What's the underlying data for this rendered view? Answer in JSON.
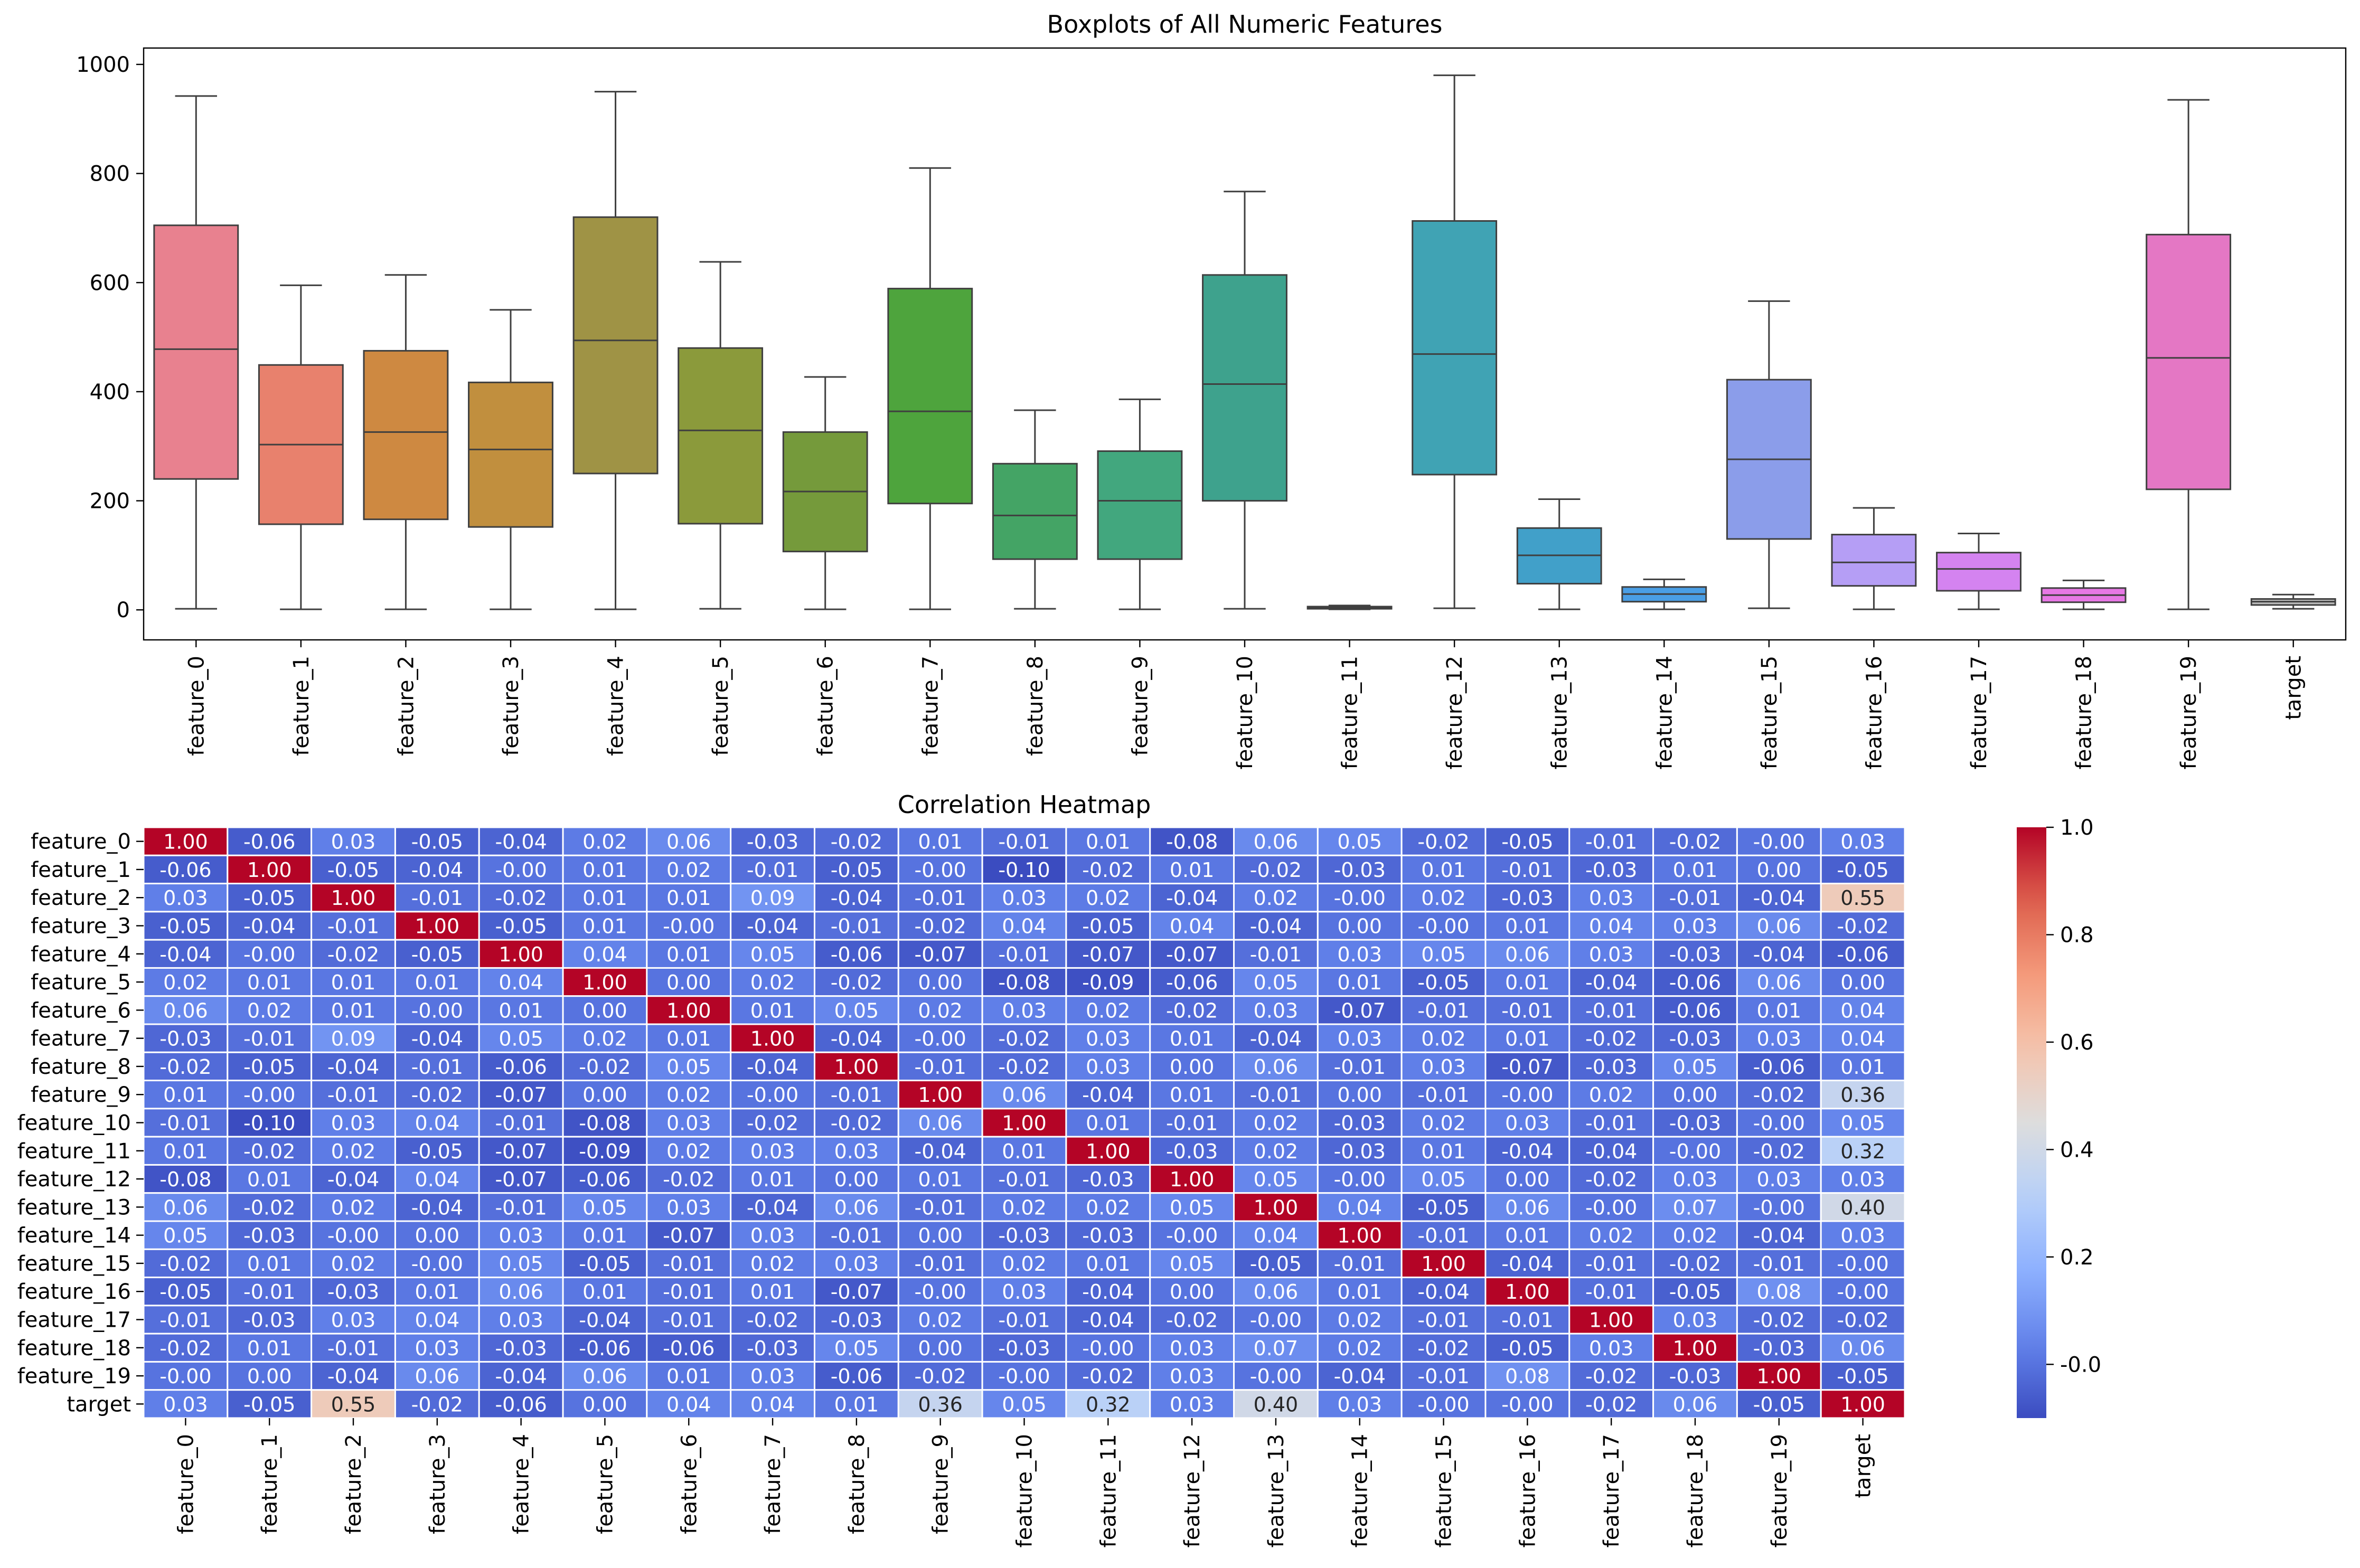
{
  "chart_data": [
    {
      "type": "box",
      "title": "Boxplots of All Numeric Features",
      "xlabel": "",
      "ylabel": "",
      "ylim": [
        -55,
        1030
      ],
      "yticks": [
        0,
        200,
        400,
        600,
        800,
        1000
      ],
      "grid": false,
      "categories": [
        "feature_0",
        "feature_1",
        "feature_2",
        "feature_3",
        "feature_4",
        "feature_5",
        "feature_6",
        "feature_7",
        "feature_8",
        "feature_9",
        "feature_10",
        "feature_11",
        "feature_12",
        "feature_13",
        "feature_14",
        "feature_15",
        "feature_16",
        "feature_17",
        "feature_18",
        "feature_19",
        "target"
      ],
      "boxes": [
        {
          "whislo": 2,
          "q1": 240,
          "med": 478,
          "q3": 705,
          "whishi": 942
        },
        {
          "whislo": 1,
          "q1": 157,
          "med": 303,
          "q3": 449,
          "whishi": 595
        },
        {
          "whislo": 1,
          "q1": 166,
          "med": 326,
          "q3": 475,
          "whishi": 614
        },
        {
          "whislo": 1,
          "q1": 152,
          "med": 294,
          "q3": 417,
          "whishi": 550
        },
        {
          "whislo": 1,
          "q1": 250,
          "med": 494,
          "q3": 720,
          "whishi": 950
        },
        {
          "whislo": 2,
          "q1": 158,
          "med": 329,
          "q3": 480,
          "whishi": 638
        },
        {
          "whislo": 1,
          "q1": 107,
          "med": 217,
          "q3": 326,
          "whishi": 427
        },
        {
          "whislo": 1,
          "q1": 195,
          "med": 364,
          "q3": 589,
          "whishi": 810
        },
        {
          "whislo": 2,
          "q1": 93,
          "med": 173,
          "q3": 268,
          "whishi": 366
        },
        {
          "whislo": 1,
          "q1": 93,
          "med": 200,
          "q3": 291,
          "whishi": 386
        },
        {
          "whislo": 2,
          "q1": 200,
          "med": 414,
          "q3": 614,
          "whishi": 767
        },
        {
          "whislo": 1,
          "q1": 2,
          "med": 4,
          "q3": 6,
          "whishi": 8
        },
        {
          "whislo": 3,
          "q1": 248,
          "med": 469,
          "q3": 713,
          "whishi": 980
        },
        {
          "whislo": 1,
          "q1": 48,
          "med": 100,
          "q3": 150,
          "whishi": 203
        },
        {
          "whislo": 1,
          "q1": 15,
          "med": 29,
          "q3": 42,
          "whishi": 56
        },
        {
          "whislo": 3,
          "q1": 130,
          "med": 276,
          "q3": 422,
          "whishi": 566
        },
        {
          "whislo": 1,
          "q1": 44,
          "med": 87,
          "q3": 138,
          "whishi": 187
        },
        {
          "whislo": 1,
          "q1": 35,
          "med": 75,
          "q3": 105,
          "whishi": 140
        },
        {
          "whislo": 1,
          "q1": 14,
          "med": 27,
          "q3": 40,
          "whishi": 54
        },
        {
          "whislo": 1,
          "q1": 221,
          "med": 462,
          "q3": 688,
          "whishi": 935
        },
        {
          "whislo": 2,
          "q1": 9,
          "med": 15,
          "q3": 20,
          "whishi": 28
        }
      ],
      "colors": [
        "#e8818f",
        "#e8816d",
        "#ce8941",
        "#c18f3e",
        "#9f9345",
        "#8b9a3b",
        "#759a3b",
        "#4ea43d",
        "#44a465",
        "#42a77e",
        "#3ea28d",
        "#3ea59a",
        "#40a3b4",
        "#41a0c9",
        "#4a9ee5",
        "#8b9dea",
        "#b59ef5",
        "#d483f0",
        "#e778e5",
        "#e477c4",
        "#bcbcbc"
      ]
    },
    {
      "type": "heatmap",
      "title": "Correlation Heatmap",
      "rows": [
        "feature_0",
        "feature_1",
        "feature_2",
        "feature_3",
        "feature_4",
        "feature_5",
        "feature_6",
        "feature_7",
        "feature_8",
        "feature_9",
        "feature_10",
        "feature_11",
        "feature_12",
        "feature_13",
        "feature_14",
        "feature_15",
        "feature_16",
        "feature_17",
        "feature_18",
        "feature_19",
        "target"
      ],
      "cols": [
        "feature_0",
        "feature_1",
        "feature_2",
        "feature_3",
        "feature_4",
        "feature_5",
        "feature_6",
        "feature_7",
        "feature_8",
        "feature_9",
        "feature_10",
        "feature_11",
        "feature_12",
        "feature_13",
        "feature_14",
        "feature_15",
        "feature_16",
        "feature_17",
        "feature_18",
        "feature_19",
        "target"
      ],
      "values": [
        [
          "1.00",
          "-0.06",
          "0.03",
          "-0.05",
          "-0.04",
          "0.02",
          "0.06",
          "-0.03",
          "-0.02",
          "0.01",
          "-0.01",
          "0.01",
          "-0.08",
          "0.06",
          "0.05",
          "-0.02",
          "-0.05",
          "-0.01",
          "-0.02",
          "-0.00",
          "0.03"
        ],
        [
          "-0.06",
          "1.00",
          "-0.05",
          "-0.04",
          "-0.00",
          "0.01",
          "0.02",
          "-0.01",
          "-0.05",
          "-0.00",
          "-0.10",
          "-0.02",
          "0.01",
          "-0.02",
          "-0.03",
          "0.01",
          "-0.01",
          "-0.03",
          "0.01",
          "0.00",
          "-0.05"
        ],
        [
          "0.03",
          "-0.05",
          "1.00",
          "-0.01",
          "-0.02",
          "0.01",
          "0.01",
          "0.09",
          "-0.04",
          "-0.01",
          "0.03",
          "0.02",
          "-0.04",
          "0.02",
          "-0.00",
          "0.02",
          "-0.03",
          "0.03",
          "-0.01",
          "-0.04",
          "0.55"
        ],
        [
          "-0.05",
          "-0.04",
          "-0.01",
          "1.00",
          "-0.05",
          "0.01",
          "-0.00",
          "-0.04",
          "-0.01",
          "-0.02",
          "0.04",
          "-0.05",
          "0.04",
          "-0.04",
          "0.00",
          "-0.00",
          "0.01",
          "0.04",
          "0.03",
          "0.06",
          "-0.02"
        ],
        [
          "-0.04",
          "-0.00",
          "-0.02",
          "-0.05",
          "1.00",
          "0.04",
          "0.01",
          "0.05",
          "-0.06",
          "-0.07",
          "-0.01",
          "-0.07",
          "-0.07",
          "-0.01",
          "0.03",
          "0.05",
          "0.06",
          "0.03",
          "-0.03",
          "-0.04",
          "-0.06"
        ],
        [
          "0.02",
          "0.01",
          "0.01",
          "0.01",
          "0.04",
          "1.00",
          "0.00",
          "0.02",
          "-0.02",
          "0.00",
          "-0.08",
          "-0.09",
          "-0.06",
          "0.05",
          "0.01",
          "-0.05",
          "0.01",
          "-0.04",
          "-0.06",
          "0.06",
          "0.00"
        ],
        [
          "0.06",
          "0.02",
          "0.01",
          "-0.00",
          "0.01",
          "0.00",
          "1.00",
          "0.01",
          "0.05",
          "0.02",
          "0.03",
          "0.02",
          "-0.02",
          "0.03",
          "-0.07",
          "-0.01",
          "-0.01",
          "-0.01",
          "-0.06",
          "0.01",
          "0.04"
        ],
        [
          "-0.03",
          "-0.01",
          "0.09",
          "-0.04",
          "0.05",
          "0.02",
          "0.01",
          "1.00",
          "-0.04",
          "-0.00",
          "-0.02",
          "0.03",
          "0.01",
          "-0.04",
          "0.03",
          "0.02",
          "0.01",
          "-0.02",
          "-0.03",
          "0.03",
          "0.04"
        ],
        [
          "-0.02",
          "-0.05",
          "-0.04",
          "-0.01",
          "-0.06",
          "-0.02",
          "0.05",
          "-0.04",
          "1.00",
          "-0.01",
          "-0.02",
          "0.03",
          "0.00",
          "0.06",
          "-0.01",
          "0.03",
          "-0.07",
          "-0.03",
          "0.05",
          "-0.06",
          "0.01"
        ],
        [
          "0.01",
          "-0.00",
          "-0.01",
          "-0.02",
          "-0.07",
          "0.00",
          "0.02",
          "-0.00",
          "-0.01",
          "1.00",
          "0.06",
          "-0.04",
          "0.01",
          "-0.01",
          "0.00",
          "-0.01",
          "-0.00",
          "0.02",
          "0.00",
          "-0.02",
          "0.36"
        ],
        [
          "-0.01",
          "-0.10",
          "0.03",
          "0.04",
          "-0.01",
          "-0.08",
          "0.03",
          "-0.02",
          "-0.02",
          "0.06",
          "1.00",
          "0.01",
          "-0.01",
          "0.02",
          "-0.03",
          "0.02",
          "0.03",
          "-0.01",
          "-0.03",
          "-0.00",
          "0.05"
        ],
        [
          "0.01",
          "-0.02",
          "0.02",
          "-0.05",
          "-0.07",
          "-0.09",
          "0.02",
          "0.03",
          "0.03",
          "-0.04",
          "0.01",
          "1.00",
          "-0.03",
          "0.02",
          "-0.03",
          "0.01",
          "-0.04",
          "-0.04",
          "-0.00",
          "-0.02",
          "0.32"
        ],
        [
          "-0.08",
          "0.01",
          "-0.04",
          "0.04",
          "-0.07",
          "-0.06",
          "-0.02",
          "0.01",
          "0.00",
          "0.01",
          "-0.01",
          "-0.03",
          "1.00",
          "0.05",
          "-0.00",
          "0.05",
          "0.00",
          "-0.02",
          "0.03",
          "0.03",
          "0.03"
        ],
        [
          "0.06",
          "-0.02",
          "0.02",
          "-0.04",
          "-0.01",
          "0.05",
          "0.03",
          "-0.04",
          "0.06",
          "-0.01",
          "0.02",
          "0.02",
          "0.05",
          "1.00",
          "0.04",
          "-0.05",
          "0.06",
          "-0.00",
          "0.07",
          "-0.00",
          "0.40"
        ],
        [
          "0.05",
          "-0.03",
          "-0.00",
          "0.00",
          "0.03",
          "0.01",
          "-0.07",
          "0.03",
          "-0.01",
          "0.00",
          "-0.03",
          "-0.03",
          "-0.00",
          "0.04",
          "1.00",
          "-0.01",
          "0.01",
          "0.02",
          "0.02",
          "-0.04",
          "0.03"
        ],
        [
          "-0.02",
          "0.01",
          "0.02",
          "-0.00",
          "0.05",
          "-0.05",
          "-0.01",
          "0.02",
          "0.03",
          "-0.01",
          "0.02",
          "0.01",
          "0.05",
          "-0.05",
          "-0.01",
          "1.00",
          "-0.04",
          "-0.01",
          "-0.02",
          "-0.01",
          "-0.00"
        ],
        [
          "-0.05",
          "-0.01",
          "-0.03",
          "0.01",
          "0.06",
          "0.01",
          "-0.01",
          "0.01",
          "-0.07",
          "-0.00",
          "0.03",
          "-0.04",
          "0.00",
          "0.06",
          "0.01",
          "-0.04",
          "1.00",
          "-0.01",
          "-0.05",
          "0.08",
          "-0.00"
        ],
        [
          "-0.01",
          "-0.03",
          "0.03",
          "0.04",
          "0.03",
          "-0.04",
          "-0.01",
          "-0.02",
          "-0.03",
          "0.02",
          "-0.01",
          "-0.04",
          "-0.02",
          "-0.00",
          "0.02",
          "-0.01",
          "-0.01",
          "1.00",
          "0.03",
          "-0.02",
          "-0.02"
        ],
        [
          "-0.02",
          "0.01",
          "-0.01",
          "0.03",
          "-0.03",
          "-0.06",
          "-0.06",
          "-0.03",
          "0.05",
          "0.00",
          "-0.03",
          "-0.00",
          "0.03",
          "0.07",
          "0.02",
          "-0.02",
          "-0.05",
          "0.03",
          "1.00",
          "-0.03",
          "0.06"
        ],
        [
          "-0.00",
          "0.00",
          "-0.04",
          "0.06",
          "-0.04",
          "0.06",
          "0.01",
          "0.03",
          "-0.06",
          "-0.02",
          "-0.00",
          "-0.02",
          "0.03",
          "-0.00",
          "-0.04",
          "-0.01",
          "0.08",
          "-0.02",
          "-0.03",
          "1.00",
          "-0.05"
        ],
        [
          "0.03",
          "-0.05",
          "0.55",
          "-0.02",
          "-0.06",
          "0.00",
          "0.04",
          "0.04",
          "0.01",
          "0.36",
          "0.05",
          "0.32",
          "0.03",
          "0.40",
          "0.03",
          "-0.00",
          "-0.00",
          "-0.02",
          "0.06",
          "-0.05",
          "1.00"
        ]
      ],
      "colormap": "coolwarm",
      "vmin": -0.1,
      "vmax": 1.0,
      "colorbar_ticks": [
        "-0.0",
        "0.2",
        "0.4",
        "0.6",
        "0.8",
        "1.0"
      ],
      "colorbar_tick_values": [
        0.0,
        0.2,
        0.4,
        0.6,
        0.8,
        1.0
      ]
    }
  ]
}
